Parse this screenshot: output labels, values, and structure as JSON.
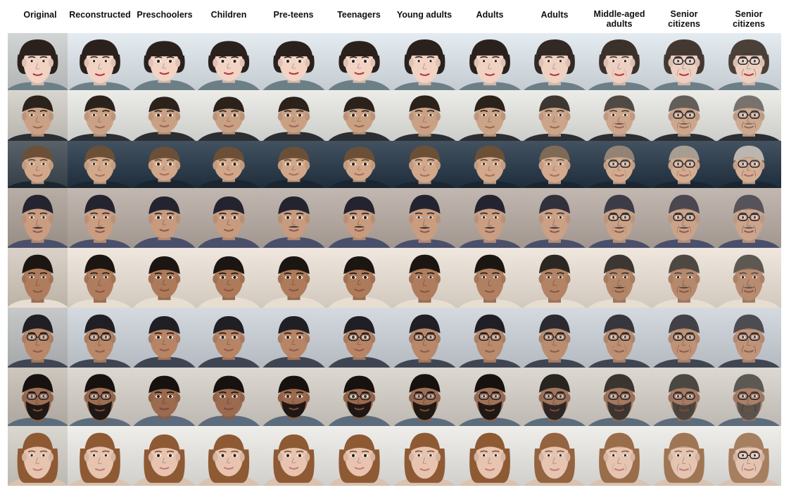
{
  "columns": [
    "Original",
    "Reconstructed",
    "Preschoolers",
    "Children",
    "Pre-teens",
    "Teenagers",
    "Young adults",
    "Adults",
    "Adults",
    "Middle-aged adults",
    "Senior citizens",
    "Senior citizens"
  ],
  "rows": [
    {
      "subject": "woman-bob-hair",
      "bg": "#dfe7ee",
      "skin": "#f2d3c4",
      "hair": "#2a211d",
      "shirt": "#6c7f86",
      "lips": "#b8323a",
      "glasses_from": 10,
      "aged_hair": "#4b4038"
    },
    {
      "subject": "man-short-dark-hair",
      "bg": "#e9e9e4",
      "skin": "#caa083",
      "hair": "#2b221c",
      "shirt": "#2b2e33",
      "lips": "#9a6657",
      "glasses_from": 10,
      "aged_hair": "#77726c"
    },
    {
      "subject": "man-slicked-hair",
      "bg": "#223344",
      "skin": "#d2a789",
      "hair": "#6b5037",
      "shirt": "#1b2530",
      "lips": "#a96c5f",
      "glasses_from": 9,
      "aged_hair": "#bcb6b0"
    },
    {
      "subject": "man-mustache-outdoors",
      "bg": "#b7aca3",
      "skin": "#c99b7e",
      "hair": "#242431",
      "shirt": "#4a4f6b",
      "lips": "#8c5a4d",
      "glasses_from": 9,
      "aged_hair": "#56535a"
    },
    {
      "subject": "man-smiling",
      "bg": "#ede3d8",
      "skin": "#ad7a5a",
      "hair": "#1c1613",
      "shirt": "#e7ddd1",
      "lips": "#8a5444",
      "glasses_from": 99,
      "aged_hair": "#5d5852"
    },
    {
      "subject": "man-round-glasses",
      "bg": "#ccd3da",
      "skin": "#b78566",
      "hair": "#1f1f25",
      "shirt": "#3f4552",
      "lips": "#8f5a4b",
      "glasses_from": 5,
      "aged_hair": "#4c4c52"
    },
    {
      "subject": "man-bearded-glasses",
      "bg": "#d7d2ca",
      "skin": "#9b6a4f",
      "hair": "#17120f",
      "shirt": "#5d6c7c",
      "lips": "#7c4a3d",
      "glasses_from": 5,
      "aged_hair": "#5c5853"
    },
    {
      "subject": "woman-auburn-hair",
      "bg": "#ecebe7",
      "skin": "#e8c4b0",
      "hair": "#8e5a34",
      "shirt": "#d9c2b0",
      "lips": "#c17b72",
      "glasses_from": 11,
      "aged_hair": "#a57f5f"
    }
  ]
}
